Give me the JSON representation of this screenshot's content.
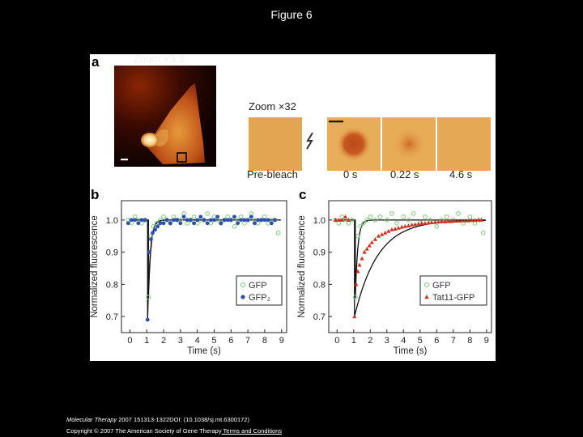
{
  "page_title": "Figure 6",
  "panel_a": {
    "letter": "a",
    "zoom_main": "Zoom ×3.3",
    "zoom_inset": "Zoom ×32",
    "frames": [
      "Pre-bleach",
      "0 s",
      "0.22 s",
      "4.6 s"
    ]
  },
  "panel_b": {
    "letter": "b"
  },
  "panel_c": {
    "letter": "c"
  },
  "footer": {
    "journal": "Molecular Therapy",
    "citation": " 2007 151313-1322DOI: (10.1038/sj.mt.6300172)",
    "copyright": "Copyright © 2007 The American Society of Gene Therapy",
    "link_text": " Terms and Conditions"
  },
  "colors": {
    "gfp": "#7ec97a",
    "gfp2": "#2f4fb0",
    "tat": "#d2301e",
    "fit": "#111111"
  },
  "chart_data": [
    {
      "type": "scatter",
      "panel": "b",
      "xlabel": "Time (s)",
      "ylabel": "Normalized fluorescence",
      "xlim": [
        -0.5,
        9.3
      ],
      "ylim": [
        0.65,
        1.06
      ],
      "x_ticks": [
        0,
        1,
        2,
        3,
        4,
        5,
        6,
        7,
        8,
        9
      ],
      "y_ticks": [
        0.7,
        0.8,
        0.9,
        1.0
      ],
      "legend_position": "bottom-right",
      "series": [
        {
          "name": "GFP",
          "marker": "open-circle",
          "color": "#7ec97a",
          "x": [
            -0.1,
            0.1,
            0.3,
            0.5,
            0.7,
            0.9,
            1.1,
            1.25,
            1.4,
            1.6,
            1.8,
            2.0,
            2.2,
            2.4,
            2.6,
            2.8,
            3.0,
            3.2,
            3.4,
            3.6,
            3.8,
            4.0,
            4.2,
            4.4,
            4.6,
            4.8,
            5.0,
            5.2,
            5.4,
            5.6,
            5.8,
            6.0,
            6.2,
            6.4,
            6.6,
            6.8,
            7.0,
            7.2,
            7.4,
            7.6,
            7.8,
            8.0,
            8.2,
            8.4,
            8.6,
            8.8
          ],
          "y": [
            1.0,
            0.99,
            1.01,
            1.0,
            0.99,
            1.0,
            0.76,
            0.95,
            0.98,
            0.99,
            1.0,
            1.01,
            1.0,
            0.99,
            1.01,
            1.0,
            1.0,
            1.02,
            0.99,
            1.0,
            1.01,
            0.99,
            1.0,
            1.0,
            1.02,
            0.99,
            1.01,
            1.0,
            0.99,
            1.0,
            1.01,
            1.0,
            0.98,
            1.0,
            1.01,
            0.99,
            1.0,
            1.02,
            1.0,
            0.99,
            1.0,
            1.01,
            0.99,
            1.0,
            1.0,
            0.96
          ]
        },
        {
          "name": "GFP₂",
          "marker": "filled-circle",
          "color": "#2f4fb0",
          "x": [
            -0.1,
            0.1,
            0.3,
            0.5,
            0.7,
            0.9,
            1.05,
            1.15,
            1.25,
            1.35,
            1.5,
            1.65,
            1.8,
            2.0,
            2.2,
            2.4,
            2.6,
            2.8,
            3.0,
            3.2,
            3.4,
            3.6,
            3.8,
            4.0,
            4.2,
            4.4,
            4.6,
            4.8,
            5.0,
            5.2,
            5.4,
            5.6,
            5.8,
            6.0,
            6.2,
            6.4,
            6.6,
            6.8,
            7.0,
            7.2,
            7.4,
            7.6,
            7.8,
            8.0,
            8.2,
            8.4,
            8.6
          ],
          "y": [
            0.99,
            1.0,
            1.0,
            0.99,
            1.0,
            1.0,
            0.69,
            0.9,
            0.94,
            0.96,
            0.97,
            0.98,
            0.99,
            0.99,
            1.0,
            0.99,
            1.0,
            1.0,
            0.99,
            1.01,
            1.0,
            1.0,
            0.99,
            1.0,
            1.01,
            1.0,
            0.99,
            1.0,
            1.0,
            1.01,
            0.99,
            1.0,
            1.0,
            1.0,
            1.01,
            0.99,
            1.0,
            1.0,
            1.0,
            1.01,
            0.99,
            1.0,
            1.0,
            1.0,
            1.0,
            0.99,
            1.0
          ]
        }
      ]
    },
    {
      "type": "scatter",
      "panel": "c",
      "xlabel": "Time (s)",
      "ylabel": "Normalized fluorescence",
      "xlim": [
        -0.5,
        9.3
      ],
      "ylim": [
        0.65,
        1.06
      ],
      "x_ticks": [
        0,
        1,
        2,
        3,
        4,
        5,
        6,
        7,
        8,
        9
      ],
      "y_ticks": [
        0.7,
        0.8,
        0.9,
        1.0
      ],
      "legend_position": "bottom-right",
      "series": [
        {
          "name": "GFP",
          "marker": "open-circle",
          "color": "#7ec97a",
          "x": [
            -0.1,
            0.1,
            0.3,
            0.5,
            0.7,
            0.9,
            1.1,
            1.25,
            1.4,
            1.6,
            1.8,
            2.0,
            2.3,
            2.6,
            3.0,
            3.3,
            3.6,
            4.0,
            4.3,
            4.6,
            5.0,
            5.3,
            5.6,
            6.0,
            6.3,
            6.6,
            7.0,
            7.3,
            7.6,
            8.0,
            8.3,
            8.6,
            8.8
          ],
          "y": [
            1.0,
            0.99,
            1.01,
            1.0,
            0.99,
            1.0,
            0.76,
            0.95,
            0.98,
            0.99,
            1.0,
            1.01,
            1.0,
            1.01,
            1.0,
            1.02,
            0.99,
            1.01,
            1.0,
            1.02,
            0.99,
            1.01,
            1.0,
            0.98,
            1.0,
            1.01,
            1.0,
            1.02,
            0.99,
            1.01,
            0.99,
            1.0,
            0.96
          ]
        },
        {
          "name": "Tat11-GFP",
          "marker": "filled-triangle",
          "color": "#d2301e",
          "x": [
            -0.1,
            0.1,
            0.3,
            0.5,
            0.7,
            1.05,
            1.15,
            1.25,
            1.35,
            1.5,
            1.65,
            1.8,
            1.95,
            2.1,
            2.3,
            2.5,
            2.7,
            2.9,
            3.1,
            3.3,
            3.5,
            3.7,
            3.9,
            4.1,
            4.3,
            4.5,
            4.7,
            4.9,
            5.1,
            5.3,
            5.5,
            5.7,
            5.9,
            6.1,
            6.3,
            6.5,
            6.7,
            6.9,
            7.1,
            7.3,
            7.5,
            7.7,
            7.9,
            8.1,
            8.3,
            8.5,
            8.7
          ],
          "y": [
            1.0,
            1.0,
            1.0,
            1.01,
            1.0,
            0.7,
            0.8,
            0.84,
            0.86,
            0.88,
            0.9,
            0.91,
            0.92,
            0.93,
            0.94,
            0.95,
            0.955,
            0.96,
            0.965,
            0.97,
            0.972,
            0.975,
            0.978,
            0.98,
            0.982,
            0.985,
            0.986,
            0.988,
            0.99,
            0.99,
            0.991,
            0.992,
            0.993,
            0.994,
            0.995,
            0.995,
            0.996,
            0.996,
            0.997,
            0.997,
            0.998,
            0.998,
            0.998,
            0.999,
            0.999,
            1.0,
            1.0
          ]
        }
      ]
    }
  ]
}
